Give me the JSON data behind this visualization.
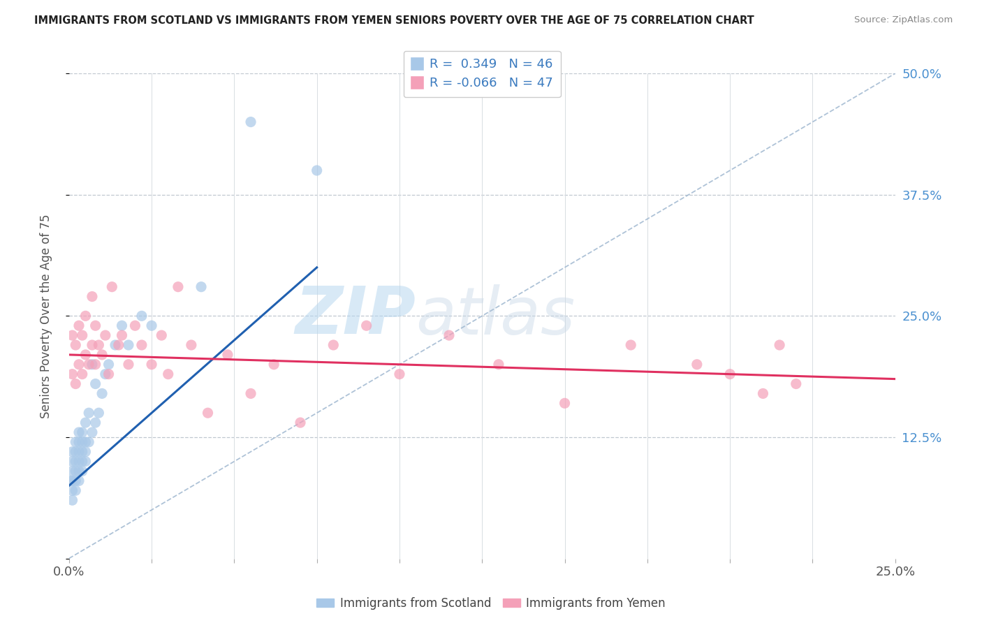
{
  "title": "IMMIGRANTS FROM SCOTLAND VS IMMIGRANTS FROM YEMEN SENIORS POVERTY OVER THE AGE OF 75 CORRELATION CHART",
  "source": "Source: ZipAtlas.com",
  "ylabel": "Seniors Poverty Over the Age of 75",
  "xlim": [
    0,
    0.25
  ],
  "ylim": [
    0,
    0.5
  ],
  "scotland_R": 0.349,
  "scotland_N": 46,
  "yemen_R": -0.066,
  "yemen_N": 47,
  "scotland_color": "#a8c8e8",
  "yemen_color": "#f4a0b8",
  "scotland_line_color": "#2060b0",
  "yemen_line_color": "#e03060",
  "diag_line_color": "#a0b8d0",
  "background_color": "#ffffff",
  "watermark": "ZIPatlas",
  "scotland_x": [
    0.0005,
    0.001,
    0.001,
    0.001,
    0.001,
    0.001,
    0.001,
    0.002,
    0.002,
    0.002,
    0.002,
    0.002,
    0.002,
    0.003,
    0.003,
    0.003,
    0.003,
    0.003,
    0.003,
    0.004,
    0.004,
    0.004,
    0.004,
    0.004,
    0.005,
    0.005,
    0.005,
    0.005,
    0.006,
    0.006,
    0.007,
    0.007,
    0.008,
    0.008,
    0.009,
    0.01,
    0.011,
    0.012,
    0.014,
    0.016,
    0.018,
    0.022,
    0.025,
    0.04,
    0.055,
    0.075
  ],
  "scotland_y": [
    0.08,
    0.06,
    0.07,
    0.08,
    0.09,
    0.1,
    0.11,
    0.07,
    0.08,
    0.09,
    0.1,
    0.11,
    0.12,
    0.08,
    0.09,
    0.1,
    0.11,
    0.12,
    0.13,
    0.09,
    0.1,
    0.11,
    0.12,
    0.13,
    0.1,
    0.11,
    0.12,
    0.14,
    0.12,
    0.15,
    0.13,
    0.2,
    0.14,
    0.18,
    0.15,
    0.17,
    0.19,
    0.2,
    0.22,
    0.24,
    0.22,
    0.25,
    0.24,
    0.28,
    0.45,
    0.4
  ],
  "yemen_x": [
    0.001,
    0.001,
    0.002,
    0.002,
    0.003,
    0.003,
    0.004,
    0.004,
    0.005,
    0.005,
    0.006,
    0.007,
    0.007,
    0.008,
    0.008,
    0.009,
    0.01,
    0.011,
    0.012,
    0.013,
    0.015,
    0.016,
    0.018,
    0.02,
    0.022,
    0.025,
    0.028,
    0.03,
    0.033,
    0.037,
    0.042,
    0.048,
    0.055,
    0.062,
    0.07,
    0.08,
    0.09,
    0.1,
    0.115,
    0.13,
    0.15,
    0.17,
    0.19,
    0.2,
    0.21,
    0.215,
    0.22
  ],
  "yemen_y": [
    0.19,
    0.23,
    0.18,
    0.22,
    0.2,
    0.24,
    0.19,
    0.23,
    0.21,
    0.25,
    0.2,
    0.27,
    0.22,
    0.2,
    0.24,
    0.22,
    0.21,
    0.23,
    0.19,
    0.28,
    0.22,
    0.23,
    0.2,
    0.24,
    0.22,
    0.2,
    0.23,
    0.19,
    0.28,
    0.22,
    0.15,
    0.21,
    0.17,
    0.2,
    0.14,
    0.22,
    0.24,
    0.19,
    0.23,
    0.2,
    0.16,
    0.22,
    0.2,
    0.19,
    0.17,
    0.22,
    0.18
  ],
  "scotland_trend_x0": 0.0,
  "scotland_trend_y0": 0.075,
  "scotland_trend_x1": 0.075,
  "scotland_trend_y1": 0.3,
  "yemen_trend_x0": 0.0,
  "yemen_trend_y0": 0.21,
  "yemen_trend_x1": 0.25,
  "yemen_trend_y1": 0.185
}
